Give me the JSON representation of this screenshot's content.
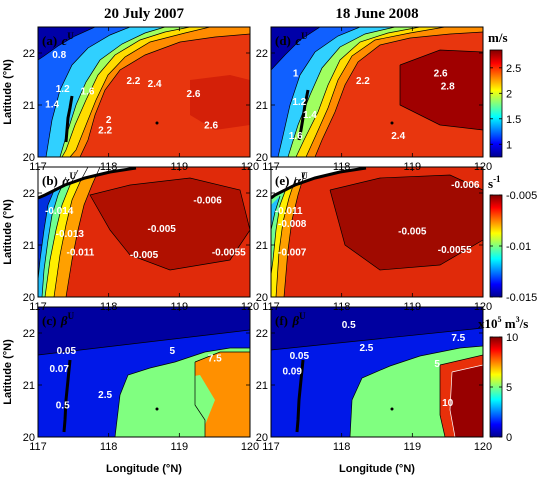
{
  "column_titles": [
    "20 July 2007",
    "18 June 2008"
  ],
  "chart_data": {
    "type": "heatmap",
    "rows": [
      {
        "colorbar": {
          "unit_base": "m/s",
          "unit_sup": "",
          "unit_prefix": "",
          "ticks": [
            "2.5",
            "2",
            "1.5",
            "1"
          ],
          "tick_values": [
            2.5,
            2,
            1.5,
            1
          ],
          "range": [
            0.75,
            2.85
          ],
          "colormap": "jet"
        },
        "panels": [
          {
            "label": "(a)",
            "symbol": "c",
            "superscript": "U",
            "contour_labels": [
              {
                "text": "0.8",
                "x": 117.3,
                "y": 21.9
              },
              {
                "text": "1.2",
                "x": 117.35,
                "y": 21.25
              },
              {
                "text": "1.4",
                "x": 117.2,
                "y": 20.95
              },
              {
                "text": "1.6",
                "x": 117.7,
                "y": 21.2
              },
              {
                "text": "2",
                "x": 118.0,
                "y": 20.65
              },
              {
                "text": "2.2",
                "x": 117.95,
                "y": 20.45
              },
              {
                "text": "2.2",
                "x": 118.35,
                "y": 21.4
              },
              {
                "text": "2.4",
                "x": 118.65,
                "y": 21.35
              },
              {
                "text": "2.6",
                "x": 119.2,
                "y": 21.15
              },
              {
                "text": "2.6",
                "x": 119.45,
                "y": 20.55
              }
            ]
          },
          {
            "label": "(d)",
            "symbol": "c",
            "superscript": "U",
            "contour_labels": [
              {
                "text": "1",
                "x": 117.35,
                "y": 21.55
              },
              {
                "text": "1.2",
                "x": 117.4,
                "y": 21.0
              },
              {
                "text": "1.4",
                "x": 117.55,
                "y": 20.75
              },
              {
                "text": "1.6",
                "x": 117.35,
                "y": 20.35
              },
              {
                "text": "2.2",
                "x": 118.3,
                "y": 21.4
              },
              {
                "text": "2.4",
                "x": 118.8,
                "y": 20.35
              },
              {
                "text": "2.6",
                "x": 119.4,
                "y": 21.55
              },
              {
                "text": "2.8",
                "x": 119.5,
                "y": 21.3
              }
            ]
          }
        ]
      },
      {
        "colorbar": {
          "unit_base": "s",
          "unit_sup": "-1",
          "unit_prefix": "",
          "ticks": [
            "-0.005",
            "-0.01",
            "-0.015"
          ],
          "tick_values": [
            -0.005,
            -0.01,
            -0.015
          ],
          "range": [
            -0.015,
            -0.005
          ],
          "colormap": "jet"
        },
        "panels": [
          {
            "label": "(b)",
            "symbol": "α",
            "superscript": "U",
            "contour_labels": [
              {
                "text": "-0.014",
                "x": 117.3,
                "y": 21.6
              },
              {
                "text": "-0.013",
                "x": 117.45,
                "y": 21.15
              },
              {
                "text": "-0.011",
                "x": 117.6,
                "y": 20.8
              },
              {
                "text": "-0.005",
                "x": 118.75,
                "y": 21.25
              },
              {
                "text": "-0.005",
                "x": 118.5,
                "y": 20.75
              },
              {
                "text": "-0.006",
                "x": 119.4,
                "y": 21.8
              },
              {
                "text": "-0.0055",
                "x": 119.7,
                "y": 20.8
              }
            ]
          },
          {
            "label": "(e)",
            "symbol": "α",
            "superscript": "U",
            "contour_labels": [
              {
                "text": "-0.011",
                "x": 117.25,
                "y": 21.6
              },
              {
                "text": "-0.008",
                "x": 117.3,
                "y": 21.35
              },
              {
                "text": "-0.007",
                "x": 117.3,
                "y": 20.8
              },
              {
                "text": "-0.005",
                "x": 119.0,
                "y": 21.2
              },
              {
                "text": "-0.0055",
                "x": 119.6,
                "y": 20.85
              },
              {
                "text": "-0.006",
                "x": 119.75,
                "y": 22.1
              }
            ]
          }
        ]
      },
      {
        "colorbar": {
          "unit_base": "m",
          "unit_sup": "3",
          "unit_prefix": "x10",
          "unit_prefix_sup": "5",
          "unit_suffix": "/s",
          "ticks": [
            "10",
            "5",
            "0"
          ],
          "tick_values": [
            10,
            5,
            0
          ],
          "range": [
            0,
            10
          ],
          "colormap": "jet"
        },
        "panels": [
          {
            "label": "(c)",
            "symbol": "β",
            "superscript": "U",
            "contour_labels": [
              {
                "text": "0.05",
                "x": 117.4,
                "y": 21.6
              },
              {
                "text": "0.07",
                "x": 117.3,
                "y": 21.25
              },
              {
                "text": "0.5",
                "x": 117.35,
                "y": 20.55
              },
              {
                "text": "2.5",
                "x": 117.95,
                "y": 20.75
              },
              {
                "text": "5",
                "x": 118.9,
                "y": 21.6
              },
              {
                "text": "7.5",
                "x": 119.5,
                "y": 21.45
              }
            ]
          },
          {
            "label": "(f)",
            "symbol": "β",
            "superscript": "U",
            "contour_labels": [
              {
                "text": "0.05",
                "x": 117.4,
                "y": 21.5
              },
              {
                "text": "0.09",
                "x": 117.3,
                "y": 21.2
              },
              {
                "text": "0.5",
                "x": 118.1,
                "y": 22.1
              },
              {
                "text": "2.5",
                "x": 118.35,
                "y": 21.65
              },
              {
                "text": "5",
                "x": 119.35,
                "y": 21.35
              },
              {
                "text": "7.5",
                "x": 119.65,
                "y": 21.85
              },
              {
                "text": "10",
                "x": 119.5,
                "y": 20.6
              }
            ]
          }
        ]
      }
    ],
    "xlabel": "Longitude (°N)",
    "ylabel": "Latitude (°N)",
    "xlim": [
      117,
      120
    ],
    "ylim": [
      20,
      22.5
    ],
    "xticks": [
      "117",
      "118",
      "119",
      "120"
    ],
    "xtick_values": [
      117,
      118,
      119,
      120
    ],
    "yticks": [
      "22",
      "21",
      "20"
    ],
    "ytick_values": [
      22,
      21,
      20
    ]
  }
}
